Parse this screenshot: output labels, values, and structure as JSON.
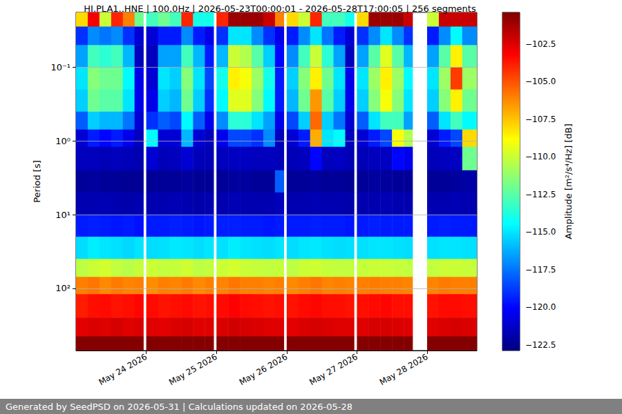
{
  "chart_data": {
    "type": "heatmap",
    "title": "HI.PLA1..HNE | 100.0Hz | 2026-05-23T00:00:01 - 2026-05-28T17:00:05 | 256 segments",
    "footer": "Generated by SeedPSD on 2026-05-31 | Calculations updated on 2026-05-28",
    "y_label": "Period [s]",
    "log": "y",
    "grid": true,
    "xlim": [
      "2026-05-23T00:00:01",
      "2026-05-28T17:00:05"
    ],
    "xticks": [
      {
        "value": "2026-05-24T00:00:00",
        "label": "May 24 2026"
      },
      {
        "value": "2026-05-25T00:00:00",
        "label": "May 25 2026"
      },
      {
        "value": "2026-05-26T00:00:00",
        "label": "May 26 2026"
      },
      {
        "value": "2026-05-27T00:00:00",
        "label": "May 27 2026"
      },
      {
        "value": "2026-05-28T00:00:00",
        "label": "May 28 2026"
      }
    ],
    "ylim": [
      0.018,
      700
    ],
    "yticks": [
      {
        "value": 0.1,
        "label": "10⁻¹"
      },
      {
        "value": 1,
        "label": "10⁰"
      },
      {
        "value": 10,
        "label": "10¹"
      },
      {
        "value": 100,
        "label": "10²"
      }
    ],
    "x": [
      "2026-05-23T00:00:01",
      "2026-05-23T04:00:00",
      "2026-05-23T08:00:00",
      "2026-05-23T12:00:00",
      "2026-05-23T16:00:00",
      "2026-05-23T20:00:00",
      "2026-05-23T23:00:00",
      "2026-05-24T00:00:00",
      "2026-05-24T04:00:00",
      "2026-05-24T08:00:00",
      "2026-05-24T12:00:00",
      "2026-05-24T16:00:00",
      "2026-05-24T20:00:00",
      "2026-05-24T23:00:00",
      "2026-05-25T00:00:00",
      "2026-05-25T04:00:00",
      "2026-05-25T08:00:00",
      "2026-05-25T12:00:00",
      "2026-05-25T16:00:00",
      "2026-05-25T20:00:00",
      "2026-05-25T23:00:00",
      "2026-05-26T00:00:00",
      "2026-05-26T04:00:00",
      "2026-05-26T08:00:00",
      "2026-05-26T12:00:00",
      "2026-05-26T16:00:00",
      "2026-05-26T20:00:00",
      "2026-05-26T23:00:00",
      "2026-05-27T00:00:00",
      "2026-05-27T04:00:00",
      "2026-05-27T08:00:00",
      "2026-05-27T12:00:00",
      "2026-05-27T16:00:00",
      "2026-05-27T19:00:00",
      "2026-05-28T00:00:00",
      "2026-05-28T04:00:00",
      "2026-05-28T08:00:00",
      "2026-05-28T12:00:00",
      "2026-05-28T17:00:05"
    ],
    "y": [
      0.018,
      0.028,
      0.05,
      0.1,
      0.2,
      0.4,
      0.7,
      1.2,
      2.5,
      5,
      10,
      20,
      40,
      70,
      120,
      250,
      450,
      700
    ],
    "values": [
      [
        -108,
        -119,
        -116.5,
        -115,
        -115.5,
        -118,
        -121,
        -121.5,
        -122.3,
        -121.8,
        -119.5,
        -115.2,
        -110.3,
        -106,
        -103.8,
        -102.6,
        -100.5
      ],
      [
        -103,
        -117,
        -113,
        -111.5,
        -112,
        -115.5,
        -119.5,
        -121.5,
        -122.2,
        -121.8,
        -119.4,
        -114.8,
        -110,
        -105.8,
        -103.5,
        -102.4,
        -100.5
      ],
      [
        -110,
        -117.5,
        -113.5,
        -112,
        -112.5,
        -116,
        -120,
        -121.6,
        -122.3,
        -121.7,
        -119.5,
        -115,
        -109.8,
        -106.2,
        -103.4,
        -102.5,
        -100.5
      ],
      [
        -104,
        -117,
        -113,
        -112,
        -112.5,
        -116,
        -119.5,
        -121.5,
        -122.3,
        -121.8,
        -119.6,
        -115.1,
        -110.2,
        -105.9,
        -103.6,
        -102.3,
        -100.5
      ],
      [
        -106,
        -119,
        -116,
        -114.5,
        -115,
        -117.5,
        -120.5,
        -121.6,
        -122.4,
        -121.9,
        -119.5,
        -115.3,
        -110.4,
        -106.1,
        -103.5,
        -102.5,
        -100.5
      ],
      [
        -112,
        -121,
        -121.5,
        -120.5,
        -120.5,
        -121,
        -121.5,
        -121.8,
        -122.4,
        -121.8,
        -119.7,
        -115,
        -110.1,
        -106,
        -103.3,
        -102.4,
        -100.5
      ],
      null,
      [
        -113,
        -121,
        -121.5,
        -121,
        -120.5,
        -119,
        -114.5,
        -121,
        -122.3,
        -121.8,
        -119.5,
        -115.2,
        -110,
        -106.3,
        -103.4,
        -102.5,
        -100.5
      ],
      [
        -112,
        -119.5,
        -116.5,
        -115,
        -115.5,
        -118,
        -121,
        -121.6,
        -122.3,
        -121.8,
        -119.5,
        -115.1,
        -110.2,
        -106,
        -103.6,
        -102.6,
        -100.5
      ],
      [
        -113,
        -119.5,
        -116.5,
        -115.5,
        -116,
        -118.5,
        -121,
        -121.5,
        -122.3,
        -121.7,
        -119.4,
        -114.9,
        -110.1,
        -106.1,
        -103.5,
        -102.4,
        -100.5
      ],
      [
        -104,
        -117,
        -113,
        -111.5,
        -112,
        -114.5,
        -116,
        -121,
        -122.2,
        -121.8,
        -119.5,
        -115,
        -109.9,
        -105.9,
        -103.4,
        -102.3,
        -100.5
      ],
      [
        -114,
        -119.5,
        -116,
        -115,
        -115.5,
        -118,
        -121,
        -121.6,
        -122.4,
        -121.9,
        -119.6,
        -115.2,
        -110.3,
        -106.2,
        -103.6,
        -102.5,
        -100.5
      ],
      [
        -114,
        -120.5,
        -119.5,
        -118.5,
        -119,
        -120.5,
        -121.5,
        -121.7,
        -122.3,
        -121.8,
        -119.5,
        -115,
        -110.2,
        -106,
        -103.5,
        -102.5,
        -100.5
      ],
      null,
      [
        -104,
        -119,
        -116,
        -114,
        -114.5,
        -117,
        -120.5,
        -121.5,
        -122.3,
        -121.8,
        -119.4,
        -115.1,
        -110,
        -106.1,
        -103.4,
        -102.4,
        -100.5
      ],
      [
        -101,
        -115,
        -110,
        -108.5,
        -109.5,
        -113.5,
        -118.5,
        -121.4,
        -122.2,
        -121.7,
        -119.4,
        -114.8,
        -109.8,
        -105.8,
        -103.2,
        -102.2,
        -100.5
      ],
      [
        -101,
        -115,
        -110.5,
        -109,
        -109.5,
        -113.5,
        -118.5,
        -121.4,
        -122.2,
        -121.8,
        -119.5,
        -115,
        -110,
        -106,
        -103.4,
        -102.3,
        -100.5
      ],
      [
        -101,
        -117,
        -112.5,
        -111,
        -111.5,
        -115,
        -119,
        -121.5,
        -122.3,
        -121.8,
        -119.5,
        -115.1,
        -110.1,
        -106,
        -103.5,
        -102.4,
        -100.5
      ],
      [
        -102,
        -119,
        -115.5,
        -114,
        -114.5,
        -116.5,
        -117,
        -121.5,
        -122.3,
        -121.8,
        -119.6,
        -115.2,
        -110.2,
        -106.1,
        -103.6,
        -102.5,
        -100.5
      ],
      [
        -106,
        -120.5,
        -120,
        -119.5,
        -119.5,
        -120.5,
        -121.5,
        -121.6,
        -118,
        -121.5,
        -119.5,
        -115,
        -110.1,
        -106,
        -103.5,
        -102.5,
        -100.5
      ],
      null,
      [
        -108,
        -119.5,
        -117,
        -115.5,
        -116,
        -118.5,
        -121,
        -121.6,
        -122.3,
        -121.8,
        -119.5,
        -115.2,
        -110.3,
        -106.2,
        -103.6,
        -102.6,
        -100.5
      ],
      [
        -110,
        -117,
        -113,
        -111.5,
        -112,
        -115.5,
        -119.5,
        -121.5,
        -122.3,
        -121.8,
        -119.5,
        -115,
        -110,
        -106,
        -103.4,
        -102.4,
        -100.5
      ],
      [
        -104,
        -115,
        -110,
        -108.5,
        -106.5,
        -105.5,
        -107,
        -120,
        -122.2,
        -121.7,
        -119.4,
        -114.9,
        -109.9,
        -105.8,
        -103.3,
        -102.3,
        -100.5
      ],
      [
        -113,
        -117.5,
        -113.5,
        -112,
        -112.5,
        -115.5,
        -115,
        -121.5,
        -122.3,
        -121.8,
        -119.5,
        -115.1,
        -110.1,
        -106.1,
        -103.5,
        -102.4,
        -100.5
      ],
      [
        -113,
        -119.5,
        -116.5,
        -115,
        -115.5,
        -117.5,
        -114.5,
        -121.4,
        -122.3,
        -121.8,
        -119.5,
        -115.2,
        -110.2,
        -106,
        -103.5,
        -102.5,
        -100.5
      ],
      [
        -114,
        -121,
        -121.5,
        -120.5,
        -120.5,
        -121,
        -121.5,
        -121.7,
        -122.4,
        -121.9,
        -119.6,
        -115.1,
        -110.2,
        -106.1,
        -103.6,
        -102.5,
        -100.5
      ],
      null,
      [
        -108,
        -119,
        -116.5,
        -115,
        -115.5,
        -118,
        -121,
        -121.6,
        -122.3,
        -121.8,
        -119.5,
        -115.1,
        -110.1,
        -106,
        -103.5,
        -102.5,
        -100.5
      ],
      [
        -101,
        -117,
        -112.5,
        -111,
        -111.5,
        -115,
        -119.5,
        -121.5,
        -122.2,
        -121.8,
        -119.4,
        -115,
        -110,
        -105.9,
        -103.4,
        -102.3,
        -100.5
      ],
      [
        -101,
        -115,
        -109.5,
        -108.5,
        -109,
        -113,
        -118.5,
        -121.4,
        -122.2,
        -121.7,
        -119.5,
        -115,
        -110,
        -106,
        -103.3,
        -102.3,
        -100.5
      ],
      [
        -101,
        -117,
        -112.5,
        -111,
        -111.5,
        -113,
        -109,
        -120,
        -122.3,
        -121.8,
        -119.5,
        -115.1,
        -110.1,
        -106,
        -103.5,
        -102.4,
        -100.5
      ],
      [
        -102,
        -119,
        -116,
        -114.5,
        -115,
        -116.5,
        -110.5,
        -120.5,
        -122.3,
        -121.8,
        -119.5,
        -115.2,
        -110.2,
        -106.1,
        -103.5,
        -102.5,
        -100.5
      ],
      null,
      [
        -110,
        -119.5,
        -116.5,
        -115,
        -115.5,
        -118,
        -121,
        -121.6,
        -122.3,
        -121.8,
        -119.5,
        -115.1,
        -110.2,
        -106.1,
        -103.6,
        -102.5,
        -100.5
      ],
      [
        -102,
        -117,
        -112.5,
        -111,
        -111.5,
        -115,
        -119.5,
        -121.5,
        -122.3,
        -121.8,
        -119.4,
        -115,
        -110,
        -105.9,
        -103.4,
        -102.4,
        -100.5
      ],
      [
        -102,
        -114.5,
        -108.5,
        -104.5,
        -108.5,
        -113,
        -118.5,
        -121.4,
        -122.2,
        -121.7,
        -119.5,
        -115,
        -110,
        -106,
        -103.4,
        -102.3,
        -100.5
      ],
      [
        -102,
        -117,
        -112.5,
        -111,
        -112,
        -114.5,
        -108,
        -112,
        -122,
        -121.8,
        -119.5,
        -115.1,
        -110.1,
        -106,
        -103.5,
        -102.4,
        -100.5
      ]
    ],
    "colorbar": {
      "label": "Amplitude [m²/s⁴/Hz] [dB]",
      "range": [
        -122.87,
        -100.39
      ],
      "ticks": [
        {
          "value": -102.5,
          "label": "−102.5"
        },
        {
          "value": -105,
          "label": "−105.0"
        },
        {
          "value": -107.5,
          "label": "−107.5"
        },
        {
          "value": -110,
          "label": "−110.0"
        },
        {
          "value": -112.5,
          "label": "−112.5"
        },
        {
          "value": -115,
          "label": "−115.0"
        },
        {
          "value": -117.5,
          "label": "−117.5"
        },
        {
          "value": -120,
          "label": "−120.0"
        },
        {
          "value": -122.5,
          "label": "−122.5"
        }
      ]
    }
  }
}
